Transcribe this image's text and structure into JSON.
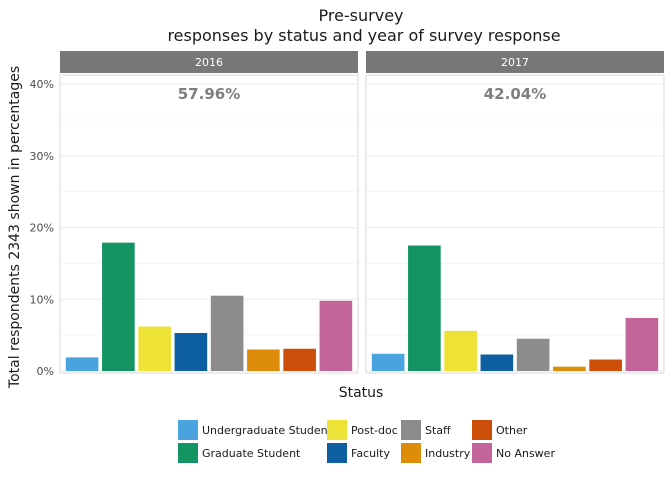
{
  "chart_data": {
    "type": "bar",
    "title_line1": "Pre-survey",
    "title_line2": "responses by status and year of survey response",
    "xlabel": "Status",
    "ylabel": "Total respondents 2343 shown in percentages",
    "ylim": [
      0,
      41
    ],
    "yticks": [
      0,
      10,
      20,
      30,
      40
    ],
    "ytick_labels": [
      "0%",
      "10%",
      "20%",
      "30%",
      "40%"
    ],
    "grid": true,
    "legend_position": "bottom",
    "categories": [
      "Undergraduate Student",
      "Graduate Student",
      "Post-doc",
      "Faculty",
      "Staff",
      "Industry",
      "Other",
      "No Answer"
    ],
    "colors": [
      "#4aa3df",
      "#139462",
      "#ede235",
      "#0d5fa1",
      "#8c8c8c",
      "#dc8c08",
      "#cc4e08",
      "#c3649b"
    ],
    "panels": [
      {
        "label": "2016",
        "annotation": "57.96%",
        "values": [
          1.9,
          17.9,
          6.2,
          5.3,
          10.5,
          3.0,
          3.1,
          9.8
        ]
      },
      {
        "label": "2017",
        "annotation": "42.04%",
        "values": [
          2.4,
          17.5,
          5.6,
          2.3,
          4.5,
          0.6,
          1.6,
          7.4
        ]
      }
    ]
  }
}
